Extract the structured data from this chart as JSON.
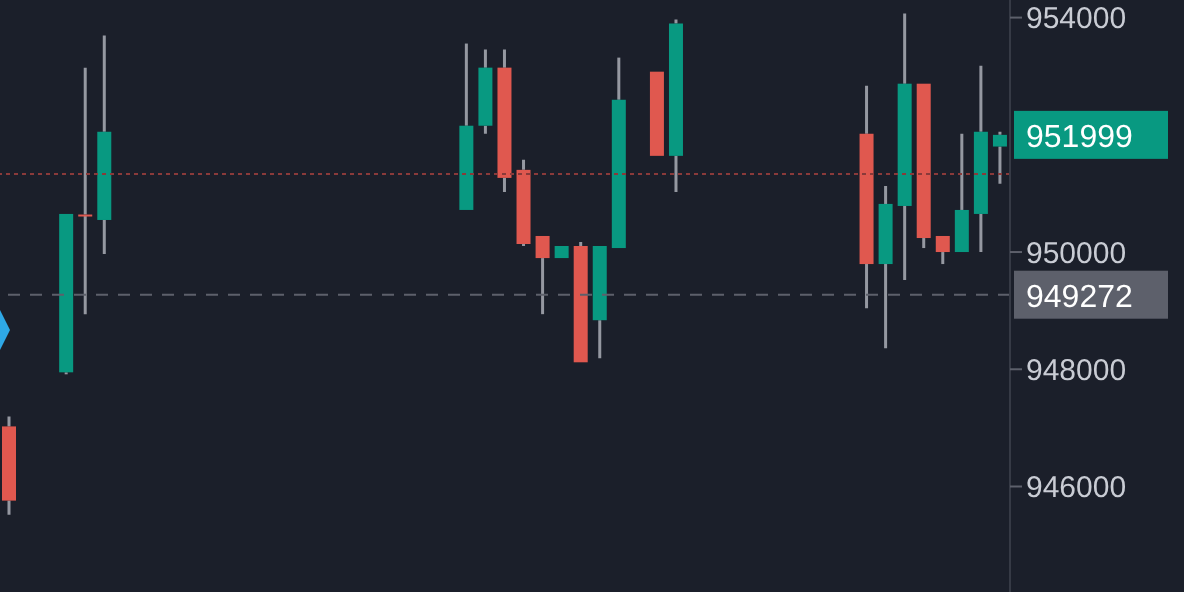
{
  "chart_data": {
    "type": "candlestick",
    "categories": [
      null,
      null,
      null,
      null,
      null,
      null,
      null,
      null,
      null,
      null,
      null,
      null,
      null,
      null,
      null,
      null,
      null,
      null,
      null,
      null,
      null,
      null,
      null,
      null,
      null,
      null,
      null,
      null,
      null,
      null,
      null,
      null,
      null,
      null,
      null,
      null,
      null,
      null,
      null,
      null,
      null,
      null,
      null,
      null,
      null,
      null,
      null,
      null,
      null,
      null,
      null,
      null,
      null
    ],
    "ohlc": [
      [
        947025,
        947196,
        945520,
        945759
      ],
      null,
      null,
      [
        947948,
        950650,
        947914,
        950650
      ],
      [
        950640,
        953146,
        948940,
        950616
      ],
      [
        950547,
        953694,
        949966,
        952052
      ],
      null,
      null,
      null,
      null,
      null,
      null,
      null,
      null,
      null,
      null,
      null,
      null,
      null,
      null,
      null,
      null,
      null,
      null,
      [
        950718,
        953557,
        950718,
        952155
      ],
      [
        952155,
        953454,
        952018,
        953146
      ],
      [
        953146,
        953454,
        951026,
        951265
      ],
      [
        951402,
        951573,
        950103,
        950137
      ],
      [
        950274,
        950274,
        948940,
        949897
      ],
      [
        949897,
        950103,
        949897,
        950103
      ],
      [
        950103,
        950171,
        948119,
        948119
      ],
      [
        948837,
        950103,
        948188,
        950103
      ],
      [
        950068,
        953317,
        950068,
        952598
      ],
      null,
      [
        953077,
        953077,
        951641,
        951641
      ],
      [
        951641,
        953967,
        951026,
        953899
      ],
      null,
      null,
      null,
      null,
      null,
      null,
      null,
      null,
      null,
      [
        952018,
        952838,
        949043,
        949795
      ],
      [
        949795,
        951128,
        948359,
        950821
      ],
      [
        950786,
        954069,
        949521,
        952872
      ],
      [
        952872,
        952872,
        950068,
        950239
      ],
      [
        950274,
        950274,
        949795,
        950000
      ],
      [
        950000,
        952018,
        950000,
        950718
      ],
      [
        950650,
        953180,
        950000,
        952052
      ],
      [
        951800,
        952052,
        951163,
        951999
      ]
    ],
    "colors": [
      "#e0584f",
      null,
      null,
      "#089981",
      "#e0584f",
      "#089981",
      null,
      null,
      null,
      null,
      null,
      null,
      null,
      null,
      null,
      null,
      null,
      null,
      null,
      null,
      null,
      null,
      null,
      null,
      "#089981",
      "#089981",
      "#e0584f",
      "#e0584f",
      "#e0584f",
      "#089981",
      "#e0584f",
      "#089981",
      "#089981",
      null,
      "#e0584f",
      "#089981",
      null,
      null,
      null,
      null,
      null,
      null,
      null,
      null,
      null,
      "#e0584f",
      "#089981",
      "#089981",
      "#e0584f",
      "#e0584f",
      "#089981",
      "#089981",
      "#089981"
    ],
    "annotations": [
      "951999"
    ],
    "ylim": [
      944200,
      954300
    ],
    "yticks": [
      946000,
      948000,
      950000,
      954000
    ],
    "tick_labels": "y",
    "ref_lines": [
      {
        "axis": "y",
        "value": 951330,
        "color": "#8a3a3a",
        "line_style": "dotted"
      },
      {
        "axis": "y",
        "value": 949272,
        "label": "949272",
        "color": "#5d606b",
        "line_style": "dashed"
      }
    ]
  }
}
